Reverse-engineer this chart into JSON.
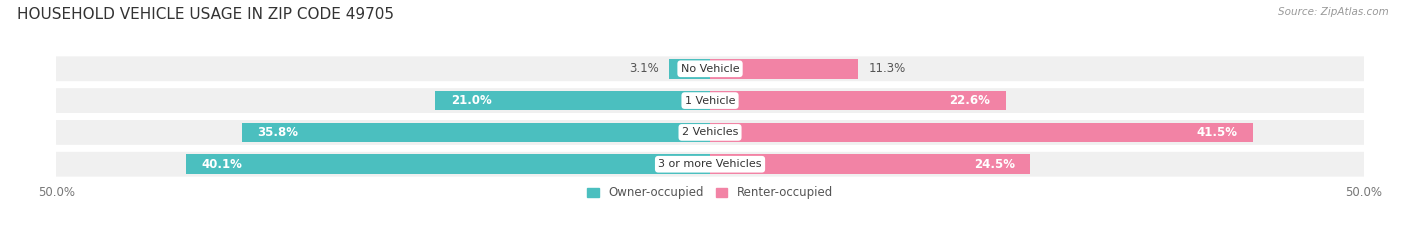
{
  "title": "HOUSEHOLD VEHICLE USAGE IN ZIP CODE 49705",
  "source": "Source: ZipAtlas.com",
  "categories": [
    "No Vehicle",
    "1 Vehicle",
    "2 Vehicles",
    "3 or more Vehicles"
  ],
  "owner_values": [
    3.1,
    21.0,
    35.8,
    40.1
  ],
  "renter_values": [
    11.3,
    22.6,
    41.5,
    24.5
  ],
  "owner_color": "#4BBFBF",
  "renter_color": "#F283A5",
  "bar_height": 0.62,
  "row_bg_color": "#F0F0F0",
  "xlim": [
    -50,
    50
  ],
  "xticklabels_left": "50.0%",
  "xticklabels_right": "50.0%",
  "legend_owner": "Owner-occupied",
  "legend_renter": "Renter-occupied",
  "title_fontsize": 11,
  "source_fontsize": 7.5,
  "label_fontsize": 8.5,
  "category_fontsize": 8,
  "background_color": "#FFFFFF",
  "small_owner_threshold": 8,
  "small_renter_threshold": 15
}
